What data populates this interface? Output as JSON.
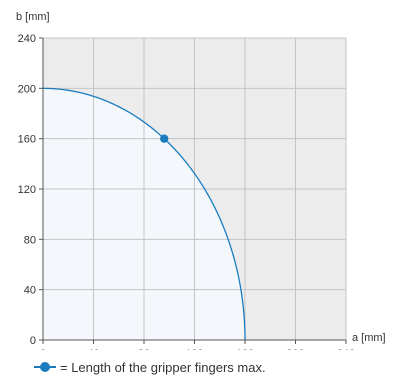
{
  "chart_data": {
    "type": "line",
    "xlabel": "a [mm]",
    "ylabel": "b [mm]",
    "xlim": [
      0,
      240
    ],
    "ylim": [
      0,
      240
    ],
    "xticks": [
      0,
      40,
      80,
      120,
      160,
      200,
      240
    ],
    "yticks": [
      0,
      40,
      80,
      120,
      160,
      200,
      240
    ],
    "grid": true,
    "series": [
      {
        "curve": "quarter ellipse",
        "x": [
          0,
          40,
          80,
          96,
          120,
          140,
          150,
          160
        ],
        "y": [
          200,
          193.6,
          173.2,
          160,
          132.3,
          96.8,
          69.6,
          0
        ],
        "color": "#1a7cbf"
      }
    ],
    "marker": {
      "x": 96,
      "y": 160
    },
    "legend": {
      "text": "= Length of the gripper fingers max.",
      "placement": "bottom"
    }
  }
}
